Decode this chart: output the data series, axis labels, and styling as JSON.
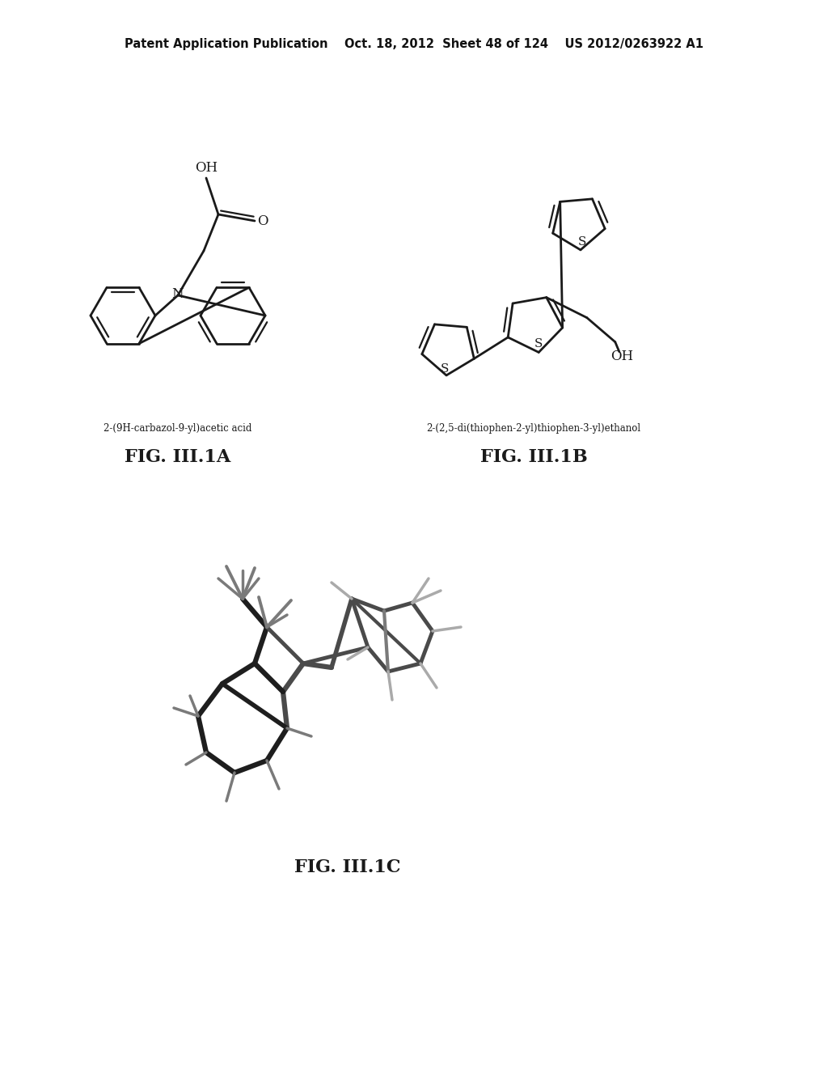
{
  "background_color": "#ffffff",
  "header_text": "Patent Application Publication    Oct. 18, 2012  Sheet 48 of 124    US 2012/0263922 A1",
  "header_fontsize": 10.5,
  "fig_label_1a": "FIG. III.1A",
  "fig_label_1b": "FIG. III.1B",
  "fig_label_1c": "FIG. III.1C",
  "fig_label_fontsize": 16,
  "chem_name_1a": "2-(9H-carbazol-9-yl)acetic acid",
  "chem_name_1b": "2-(2,5-di(thiophen-2-yl)thiophen-3-yl)ethanol",
  "chem_name_fontsize": 8.5
}
